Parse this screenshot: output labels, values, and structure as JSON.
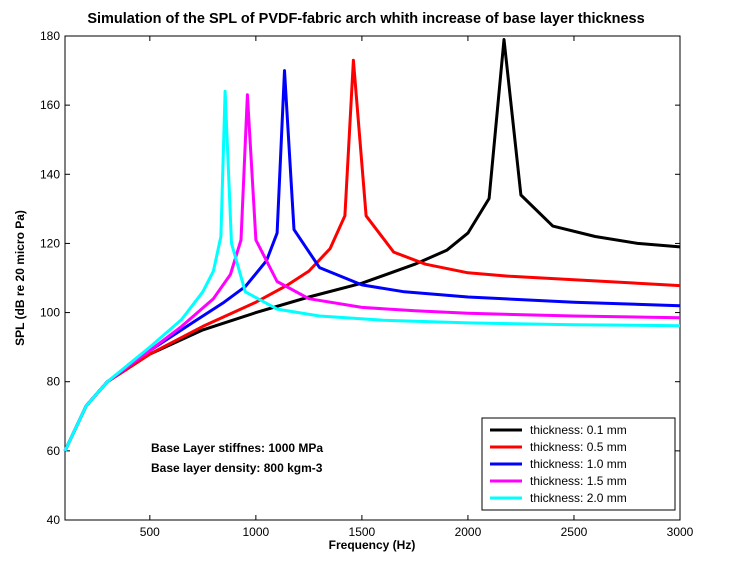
{
  "chart_data": {
    "type": "line",
    "title": "Simulation of the SPL of PVDF-fabric arch whith increase of base layer thickness",
    "xlabel": "Frequency (Hz)",
    "ylabel": "SPL (dB re 20 micro Pa)",
    "xlim": [
      100,
      3000
    ],
    "ylim": [
      40,
      180
    ],
    "xticks": [
      500,
      1000,
      1500,
      2000,
      2500,
      3000
    ],
    "yticks": [
      40,
      60,
      80,
      100,
      120,
      140,
      160,
      180
    ],
    "grid": false,
    "legend_position": "bottom-right",
    "annotations": [
      "Base Layer stiffnes: 1000 MPa",
      "Base layer density: 800 kgm-3"
    ],
    "series": [
      {
        "name": "thickness: 0.1 mm",
        "color": "#000000",
        "resonance_hz": 2170,
        "peak_db": 179,
        "x": [
          100,
          200,
          300,
          500,
          750,
          1000,
          1250,
          1500,
          1750,
          1900,
          2000,
          2100,
          2170,
          2250,
          2400,
          2600,
          2800,
          3000
        ],
        "y": [
          60,
          73,
          80,
          88,
          95,
          100,
          104.5,
          108.5,
          114,
          118,
          123,
          133,
          179,
          134,
          125,
          122,
          120,
          119
        ]
      },
      {
        "name": "thickness: 0.5 mm",
        "color": "#ff0000",
        "resonance_hz": 1460,
        "peak_db": 173,
        "x": [
          100,
          200,
          300,
          500,
          750,
          1000,
          1150,
          1250,
          1350,
          1420,
          1460,
          1520,
          1650,
          1800,
          2000,
          2200,
          2500,
          3000
        ],
        "y": [
          60,
          73,
          80,
          88,
          96,
          103,
          108,
          112,
          118.5,
          128,
          173,
          128,
          117.5,
          114,
          111.5,
          110.5,
          109.5,
          107.8
        ]
      },
      {
        "name": "thickness: 1.0 mm",
        "color": "#0000ff",
        "resonance_hz": 1135,
        "peak_db": 170,
        "x": [
          100,
          200,
          300,
          500,
          700,
          850,
          950,
          1050,
          1100,
          1135,
          1180,
          1300,
          1500,
          1700,
          2000,
          2500,
          3000
        ],
        "y": [
          60,
          73,
          80,
          89,
          97,
          103,
          107.5,
          115,
          123,
          170,
          124,
          113,
          108,
          106,
          104.5,
          103,
          102
        ]
      },
      {
        "name": "thickness: 1.5 mm",
        "color": "#ff00ff",
        "resonance_hz": 960,
        "peak_db": 163,
        "x": [
          100,
          200,
          300,
          500,
          650,
          800,
          880,
          930,
          960,
          1000,
          1100,
          1250,
          1500,
          1750,
          2000,
          2500,
          3000
        ],
        "y": [
          60,
          73,
          80,
          89,
          96,
          104,
          111,
          121,
          163,
          121,
          109,
          104,
          101.5,
          100.5,
          99.8,
          99,
          98.5
        ]
      },
      {
        "name": "thickness: 2.0 mm",
        "color": "#00ffff",
        "resonance_hz": 855,
        "peak_db": 164,
        "x": [
          100,
          200,
          300,
          500,
          650,
          750,
          800,
          835,
          855,
          885,
          950,
          1100,
          1300,
          1600,
          2000,
          2500,
          3000
        ],
        "y": [
          60,
          73,
          80,
          90,
          98,
          106,
          112,
          122,
          164,
          120,
          106,
          101,
          99,
          97.8,
          97,
          96.5,
          96.2
        ]
      }
    ]
  }
}
